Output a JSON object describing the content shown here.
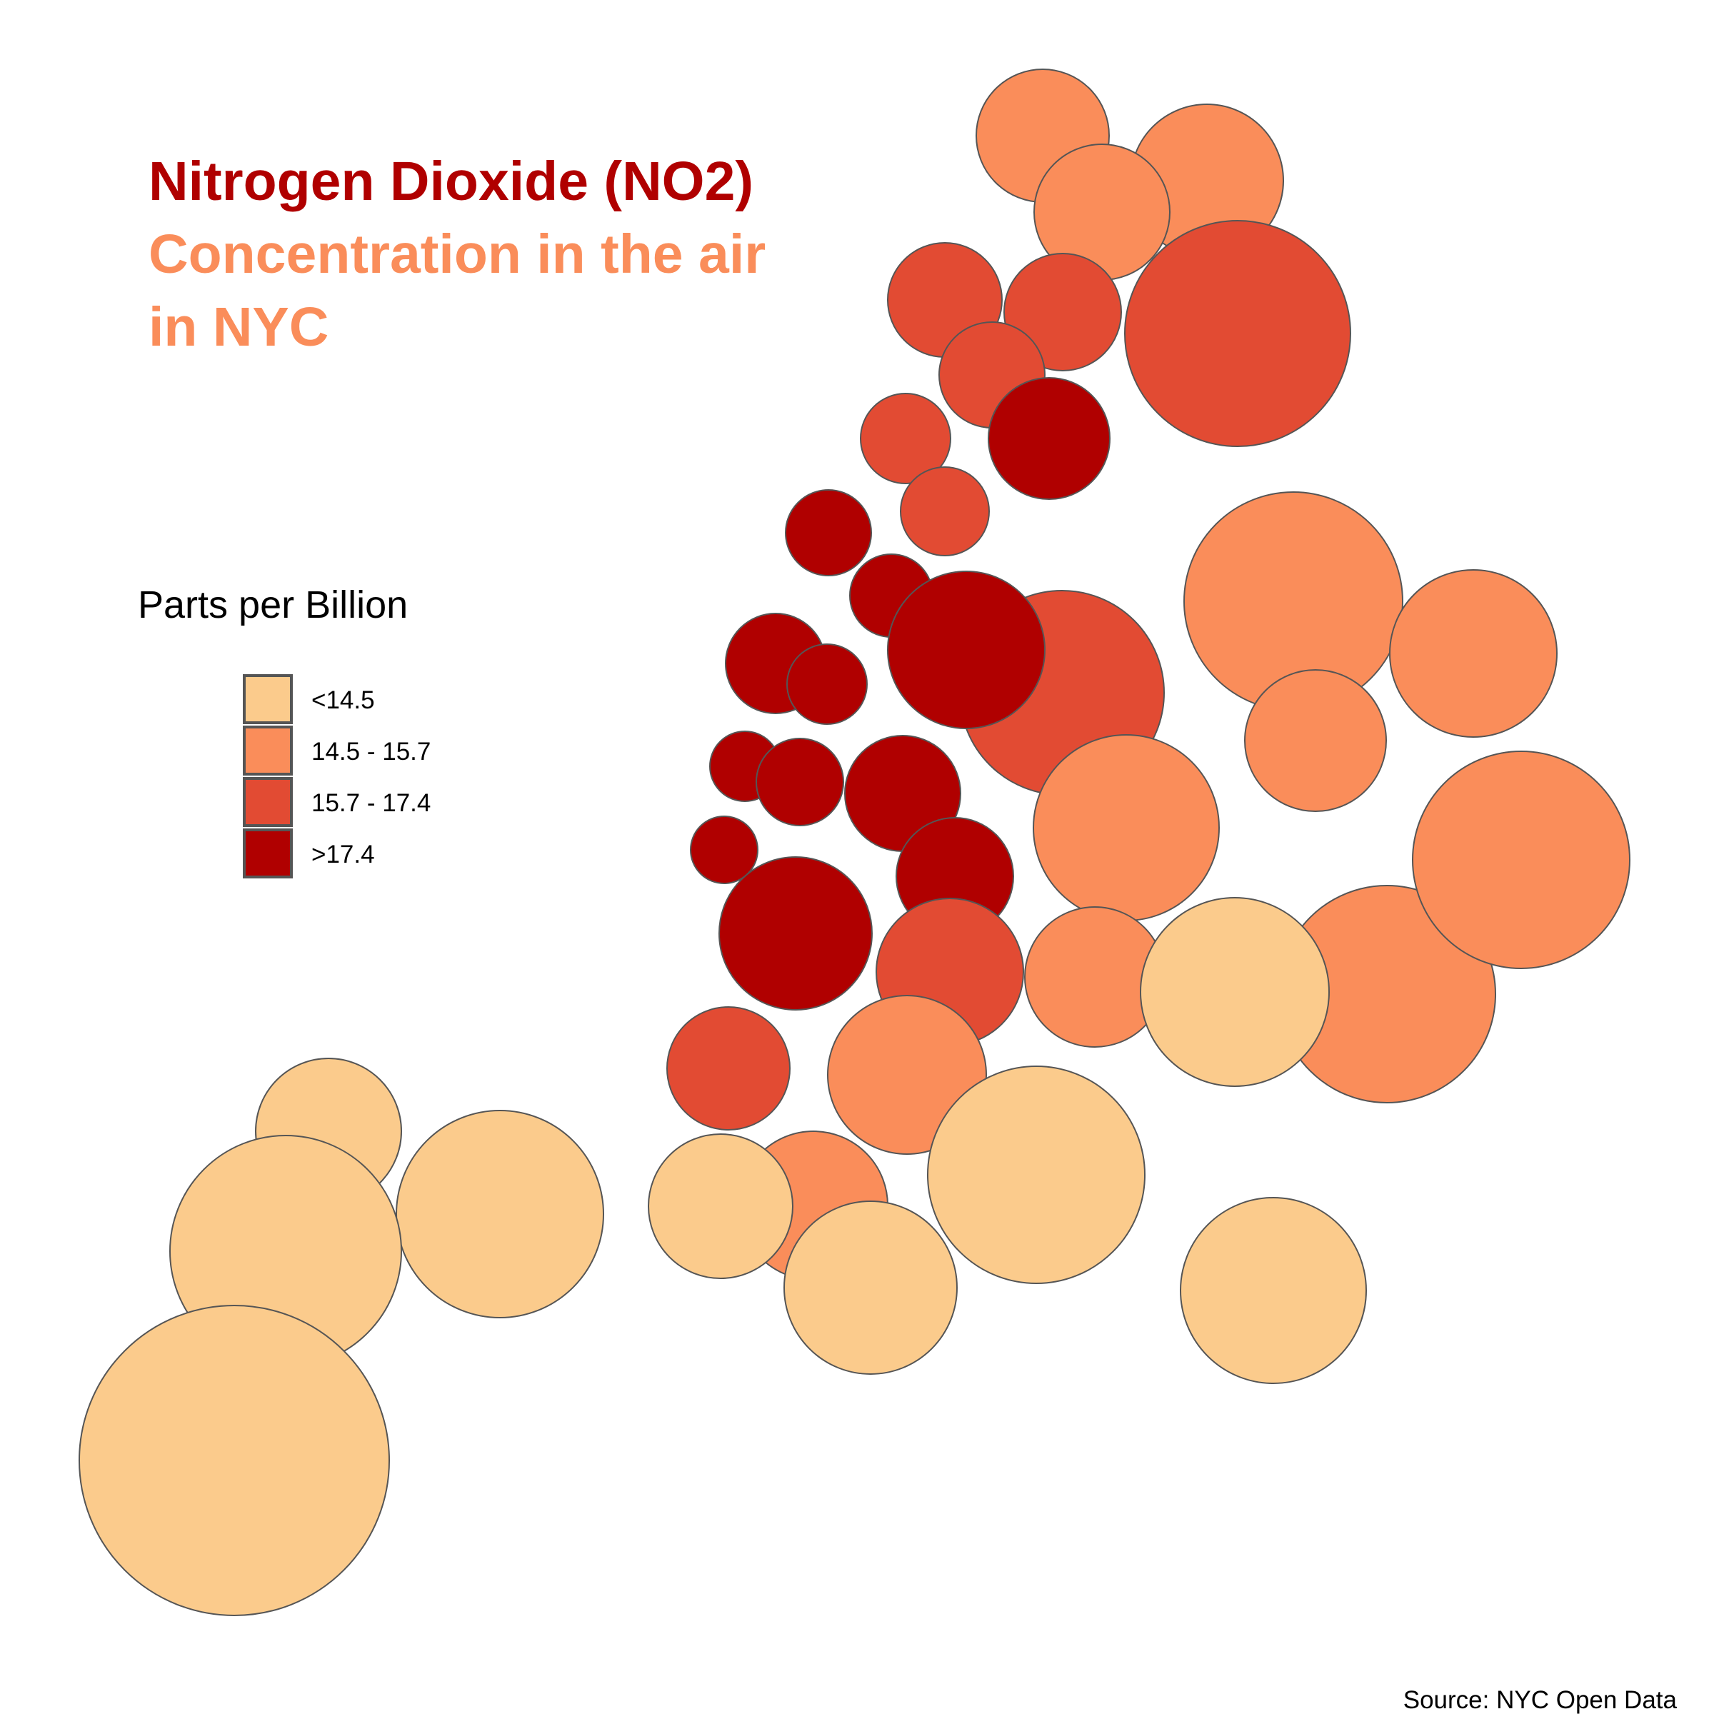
{
  "title": {
    "line1": "Nitrogen Dioxide (NO2)",
    "line2": "Concentration in the air",
    "line3": "in NYC"
  },
  "legend": {
    "title": "Parts per Billion",
    "items": [
      {
        "label": "<14.5",
        "color": "#fbcb8c"
      },
      {
        "label": "14.5 - 15.7",
        "color": "#fa8d5a"
      },
      {
        "label": "15.7 - 17.4",
        "color": "#e24b33"
      },
      {
        "label": ">17.4",
        "color": "#b00000"
      }
    ]
  },
  "source": "Source: NYC Open Data",
  "colors": {
    "title_primary": "#b00000",
    "title_secondary": "#fa8d5a",
    "stroke": "#555555"
  },
  "map_data": {
    "type": "bubble-map",
    "value_classes": [
      "<14.5",
      "14.5 - 15.7",
      "15.7 - 17.4",
      ">17.4"
    ]
  }
}
